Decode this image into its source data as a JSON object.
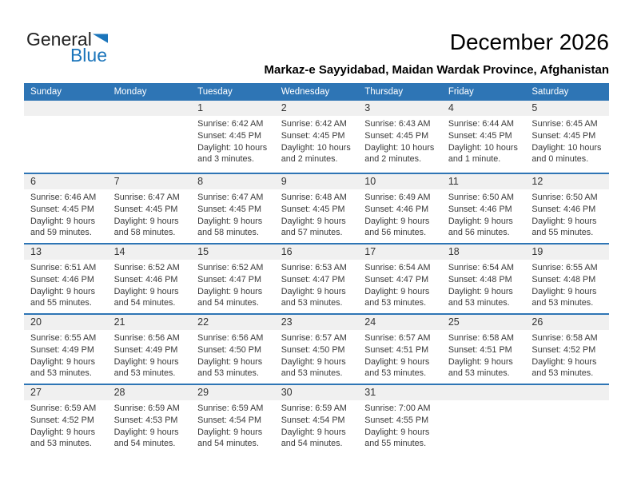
{
  "logo": {
    "general": "General",
    "blue": "Blue"
  },
  "header": {
    "title": "December 2026",
    "subtitle": "Markaz-e Sayyidabad, Maidan Wardak Province, Afghanistan"
  },
  "colors": {
    "header_blue": "#2e75b5",
    "strip_gray": "#f0f0f0",
    "logo_blue": "#1b75bb",
    "body_text": "#3a3a3a"
  },
  "calendar": {
    "weekday_headers": [
      "Sunday",
      "Monday",
      "Tuesday",
      "Wednesday",
      "Thursday",
      "Friday",
      "Saturday"
    ],
    "weeks": [
      [
        null,
        null,
        {
          "day": "1",
          "sunrise": "Sunrise: 6:42 AM",
          "sunset": "Sunset: 4:45 PM",
          "daylight": "Daylight: 10 hours and 3 minutes."
        },
        {
          "day": "2",
          "sunrise": "Sunrise: 6:42 AM",
          "sunset": "Sunset: 4:45 PM",
          "daylight": "Daylight: 10 hours and 2 minutes."
        },
        {
          "day": "3",
          "sunrise": "Sunrise: 6:43 AM",
          "sunset": "Sunset: 4:45 PM",
          "daylight": "Daylight: 10 hours and 2 minutes."
        },
        {
          "day": "4",
          "sunrise": "Sunrise: 6:44 AM",
          "sunset": "Sunset: 4:45 PM",
          "daylight": "Daylight: 10 hours and 1 minute."
        },
        {
          "day": "5",
          "sunrise": "Sunrise: 6:45 AM",
          "sunset": "Sunset: 4:45 PM",
          "daylight": "Daylight: 10 hours and 0 minutes."
        }
      ],
      [
        {
          "day": "6",
          "sunrise": "Sunrise: 6:46 AM",
          "sunset": "Sunset: 4:45 PM",
          "daylight": "Daylight: 9 hours and 59 minutes."
        },
        {
          "day": "7",
          "sunrise": "Sunrise: 6:47 AM",
          "sunset": "Sunset: 4:45 PM",
          "daylight": "Daylight: 9 hours and 58 minutes."
        },
        {
          "day": "8",
          "sunrise": "Sunrise: 6:47 AM",
          "sunset": "Sunset: 4:45 PM",
          "daylight": "Daylight: 9 hours and 58 minutes."
        },
        {
          "day": "9",
          "sunrise": "Sunrise: 6:48 AM",
          "sunset": "Sunset: 4:45 PM",
          "daylight": "Daylight: 9 hours and 57 minutes."
        },
        {
          "day": "10",
          "sunrise": "Sunrise: 6:49 AM",
          "sunset": "Sunset: 4:46 PM",
          "daylight": "Daylight: 9 hours and 56 minutes."
        },
        {
          "day": "11",
          "sunrise": "Sunrise: 6:50 AM",
          "sunset": "Sunset: 4:46 PM",
          "daylight": "Daylight: 9 hours and 56 minutes."
        },
        {
          "day": "12",
          "sunrise": "Sunrise: 6:50 AM",
          "sunset": "Sunset: 4:46 PM",
          "daylight": "Daylight: 9 hours and 55 minutes."
        }
      ],
      [
        {
          "day": "13",
          "sunrise": "Sunrise: 6:51 AM",
          "sunset": "Sunset: 4:46 PM",
          "daylight": "Daylight: 9 hours and 55 minutes."
        },
        {
          "day": "14",
          "sunrise": "Sunrise: 6:52 AM",
          "sunset": "Sunset: 4:46 PM",
          "daylight": "Daylight: 9 hours and 54 minutes."
        },
        {
          "day": "15",
          "sunrise": "Sunrise: 6:52 AM",
          "sunset": "Sunset: 4:47 PM",
          "daylight": "Daylight: 9 hours and 54 minutes."
        },
        {
          "day": "16",
          "sunrise": "Sunrise: 6:53 AM",
          "sunset": "Sunset: 4:47 PM",
          "daylight": "Daylight: 9 hours and 53 minutes."
        },
        {
          "day": "17",
          "sunrise": "Sunrise: 6:54 AM",
          "sunset": "Sunset: 4:47 PM",
          "daylight": "Daylight: 9 hours and 53 minutes."
        },
        {
          "day": "18",
          "sunrise": "Sunrise: 6:54 AM",
          "sunset": "Sunset: 4:48 PM",
          "daylight": "Daylight: 9 hours and 53 minutes."
        },
        {
          "day": "19",
          "sunrise": "Sunrise: 6:55 AM",
          "sunset": "Sunset: 4:48 PM",
          "daylight": "Daylight: 9 hours and 53 minutes."
        }
      ],
      [
        {
          "day": "20",
          "sunrise": "Sunrise: 6:55 AM",
          "sunset": "Sunset: 4:49 PM",
          "daylight": "Daylight: 9 hours and 53 minutes."
        },
        {
          "day": "21",
          "sunrise": "Sunrise: 6:56 AM",
          "sunset": "Sunset: 4:49 PM",
          "daylight": "Daylight: 9 hours and 53 minutes."
        },
        {
          "day": "22",
          "sunrise": "Sunrise: 6:56 AM",
          "sunset": "Sunset: 4:50 PM",
          "daylight": "Daylight: 9 hours and 53 minutes."
        },
        {
          "day": "23",
          "sunrise": "Sunrise: 6:57 AM",
          "sunset": "Sunset: 4:50 PM",
          "daylight": "Daylight: 9 hours and 53 minutes."
        },
        {
          "day": "24",
          "sunrise": "Sunrise: 6:57 AM",
          "sunset": "Sunset: 4:51 PM",
          "daylight": "Daylight: 9 hours and 53 minutes."
        },
        {
          "day": "25",
          "sunrise": "Sunrise: 6:58 AM",
          "sunset": "Sunset: 4:51 PM",
          "daylight": "Daylight: 9 hours and 53 minutes."
        },
        {
          "day": "26",
          "sunrise": "Sunrise: 6:58 AM",
          "sunset": "Sunset: 4:52 PM",
          "daylight": "Daylight: 9 hours and 53 minutes."
        }
      ],
      [
        {
          "day": "27",
          "sunrise": "Sunrise: 6:59 AM",
          "sunset": "Sunset: 4:52 PM",
          "daylight": "Daylight: 9 hours and 53 minutes."
        },
        {
          "day": "28",
          "sunrise": "Sunrise: 6:59 AM",
          "sunset": "Sunset: 4:53 PM",
          "daylight": "Daylight: 9 hours and 54 minutes."
        },
        {
          "day": "29",
          "sunrise": "Sunrise: 6:59 AM",
          "sunset": "Sunset: 4:54 PM",
          "daylight": "Daylight: 9 hours and 54 minutes."
        },
        {
          "day": "30",
          "sunrise": "Sunrise: 6:59 AM",
          "sunset": "Sunset: 4:54 PM",
          "daylight": "Daylight: 9 hours and 54 minutes."
        },
        {
          "day": "31",
          "sunrise": "Sunrise: 7:00 AM",
          "sunset": "Sunset: 4:55 PM",
          "daylight": "Daylight: 9 hours and 55 minutes."
        },
        null,
        null
      ]
    ]
  }
}
